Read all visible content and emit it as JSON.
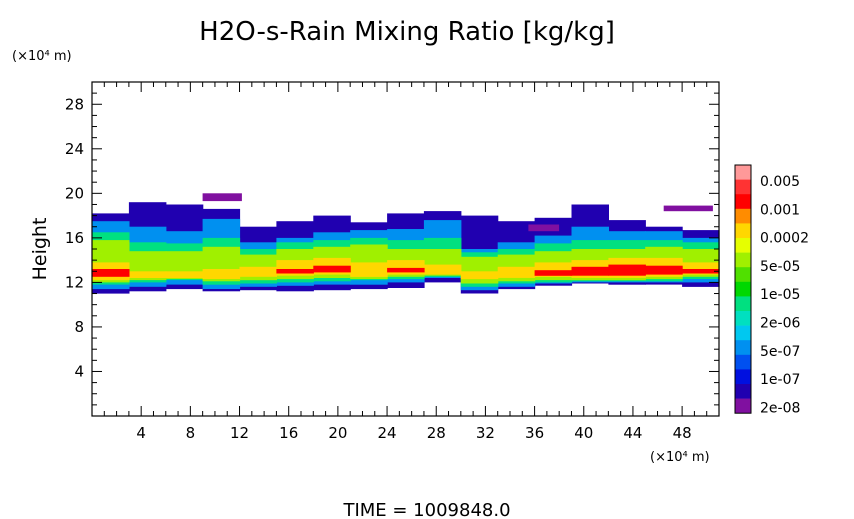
{
  "chart_data": {
    "type": "heatmap",
    "title": "H2O-s-Rain Mixing Ratio [kg/kg]",
    "xlabel": "",
    "ylabel": "Height",
    "x_unit": "(×10⁴ m)",
    "y_unit": "(×10⁴ m)",
    "x_ticks": [
      4,
      8,
      12,
      16,
      20,
      24,
      28,
      32,
      36,
      40,
      44,
      48
    ],
    "y_ticks": [
      4,
      8,
      12,
      16,
      20,
      24,
      28
    ],
    "xlim": [
      0,
      51
    ],
    "ylim": [
      0,
      30
    ],
    "footer": "TIME  =  1009848.0",
    "colorbar": {
      "labels": [
        "0.005",
        "0.001",
        "0.0002",
        "5e-05",
        "1e-05",
        "2e-06",
        "5e-07",
        "1e-07",
        "2e-08"
      ],
      "colors": [
        "#ff9999",
        "#ff3333",
        "#ff0000",
        "#ff8c00",
        "#ffd700",
        "#e6ff00",
        "#a0f000",
        "#50e000",
        "#00d800",
        "#00e080",
        "#00e0c0",
        "#00c8f0",
        "#0090f0",
        "#0050f0",
        "#0010e0",
        "#2000b0",
        "#8010a0"
      ]
    },
    "bands": [
      {
        "level": 1,
        "top": [
          18.2,
          19.2,
          19.0,
          18.6,
          17.0,
          17.5,
          18.0,
          17.4,
          18.2,
          18.4,
          18.0,
          17.5,
          17.8,
          19.0,
          17.6,
          17.0,
          16.7
        ],
        "bottom": [
          11.0,
          11.2,
          11.4,
          11.2,
          11.3,
          11.2,
          11.3,
          11.4,
          11.5,
          12.0,
          11.0,
          11.4,
          11.7,
          11.9,
          11.8,
          11.8,
          11.6
        ]
      },
      {
        "level": 4,
        "top": [
          17.5,
          17.0,
          16.6,
          17.7,
          15.6,
          16.0,
          16.5,
          16.7,
          16.8,
          17.6,
          15.0,
          15.6,
          16.2,
          17.0,
          16.6,
          16.6,
          16.0
        ],
        "bottom": [
          11.4,
          11.6,
          11.8,
          11.4,
          11.6,
          11.7,
          11.8,
          11.8,
          12.0,
          12.4,
          11.3,
          11.6,
          11.9,
          12.0,
          12.0,
          12.0,
          12.0
        ]
      },
      {
        "level": 7,
        "top": [
          16.5,
          15.6,
          15.5,
          16.0,
          15.0,
          15.6,
          15.8,
          16.0,
          15.8,
          16.0,
          14.7,
          15.0,
          15.5,
          15.8,
          15.8,
          15.8,
          15.6
        ],
        "bottom": [
          11.8,
          12.0,
          12.2,
          11.8,
          11.9,
          12.0,
          12.1,
          12.2,
          12.3,
          12.5,
          11.6,
          11.9,
          12.0,
          12.1,
          12.1,
          12.1,
          12.3
        ]
      },
      {
        "level": 10,
        "top": [
          15.8,
          14.8,
          14.8,
          15.2,
          14.5,
          15.0,
          15.2,
          15.4,
          15.0,
          15.0,
          14.3,
          14.5,
          14.8,
          15.0,
          15.0,
          15.2,
          15.0
        ],
        "bottom": [
          12.0,
          12.2,
          12.3,
          12.1,
          12.2,
          12.3,
          12.4,
          12.3,
          12.5,
          12.6,
          11.9,
          12.1,
          12.2,
          12.2,
          12.2,
          12.3,
          12.5
        ]
      },
      {
        "level": 12,
        "top": [
          13.8,
          13.0,
          13.0,
          13.2,
          13.4,
          14.0,
          14.2,
          13.8,
          14.0,
          13.6,
          13.0,
          13.4,
          13.8,
          14.0,
          14.2,
          14.2,
          13.8
        ],
        "bottom": [
          12.2,
          12.4,
          12.4,
          12.3,
          12.5,
          12.6,
          12.7,
          12.5,
          12.7,
          12.7,
          12.3,
          12.4,
          12.5,
          12.4,
          12.4,
          12.5,
          12.7
        ]
      },
      {
        "level": 14,
        "top": [
          13.2,
          0,
          0,
          0,
          0,
          13.2,
          13.5,
          0,
          13.3,
          0,
          0,
          0,
          13.1,
          13.4,
          13.6,
          13.5,
          13.2
        ],
        "bottom": [
          12.5,
          0,
          0,
          0,
          0,
          12.8,
          12.9,
          0,
          12.9,
          0,
          0,
          0,
          12.6,
          12.6,
          12.6,
          12.7,
          12.8
        ]
      }
    ],
    "band_x": [
      0,
      3,
      6,
      9,
      12,
      15,
      18,
      21,
      24,
      27,
      30,
      33,
      36,
      39,
      42,
      45,
      48,
      51
    ],
    "upper_patches": [
      {
        "x": 9.0,
        "y": 19.3,
        "w": 3.2,
        "h": 0.7
      },
      {
        "x": 35.5,
        "y": 16.6,
        "w": 2.5,
        "h": 0.6
      },
      {
        "x": 46.5,
        "y": 18.4,
        "w": 4.0,
        "h": 0.5
      }
    ]
  }
}
